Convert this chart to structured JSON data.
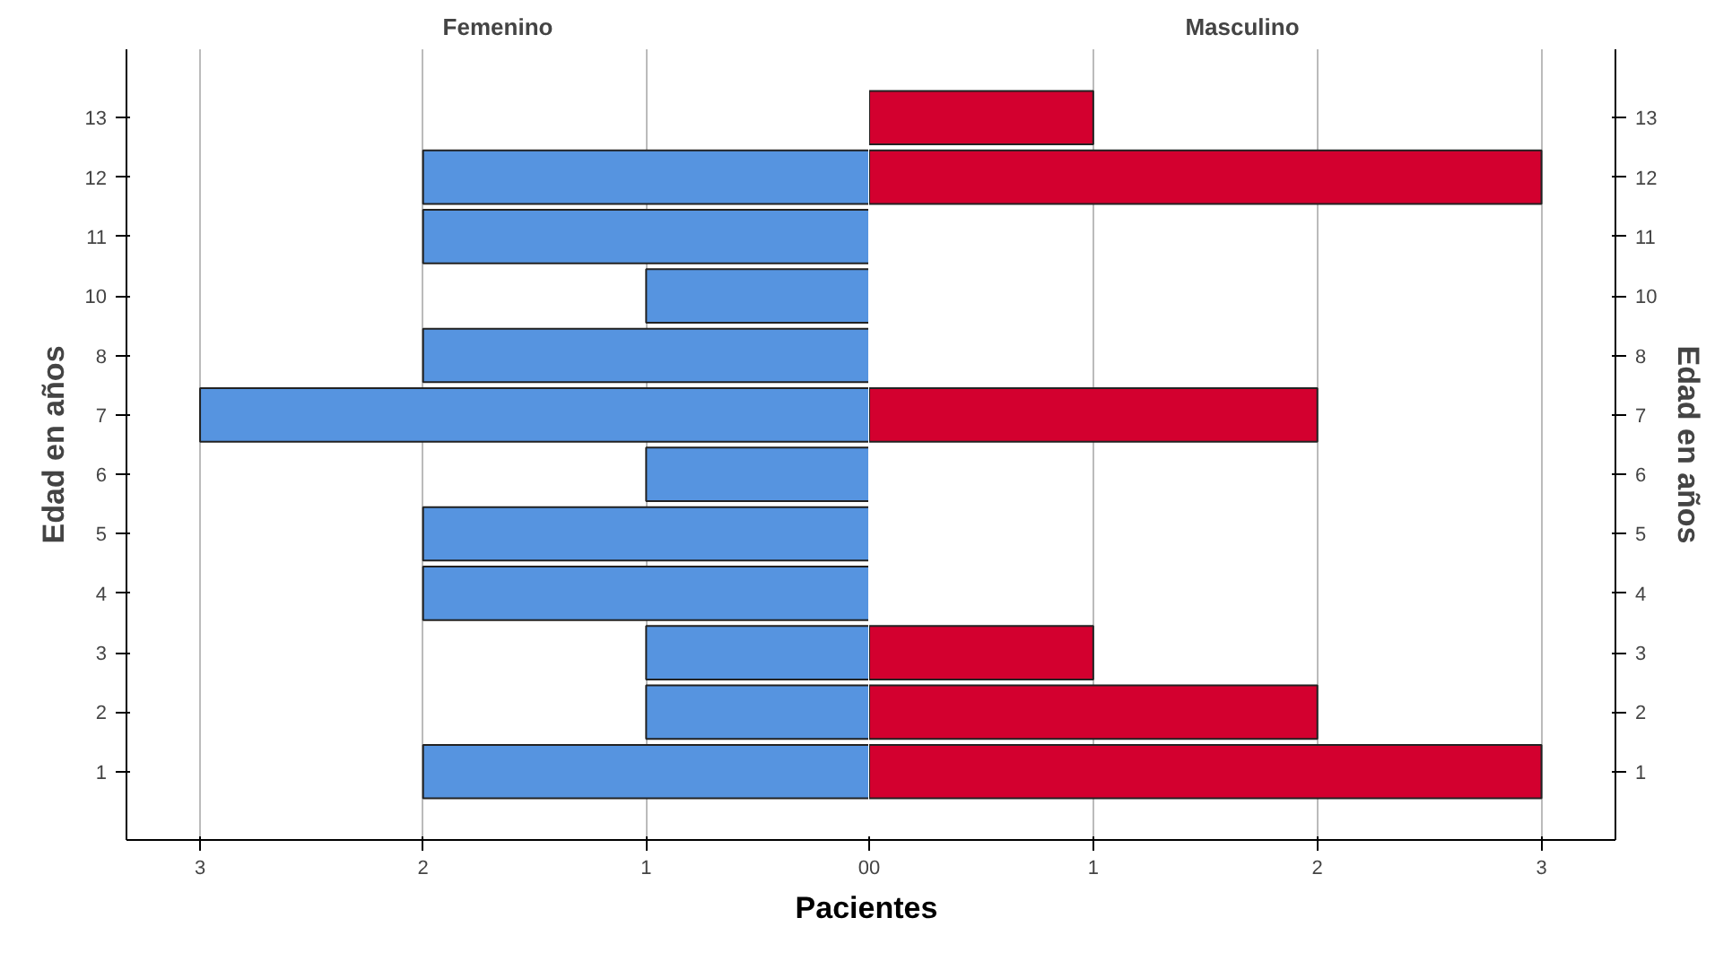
{
  "chart_data": [
    {
      "type": "bar",
      "orientation": "horizontal",
      "title": "Femenino",
      "ylabel": "Edad en años",
      "xlabel": "Pacientes",
      "categories": [
        "13",
        "12",
        "11",
        "10",
        "8",
        "7",
        "6",
        "5",
        "4",
        "3",
        "2",
        "1"
      ],
      "values": [
        null,
        2,
        2,
        1,
        2,
        3,
        1,
        2,
        2,
        1,
        1,
        2
      ],
      "color": "#5694e0",
      "xlim": [
        3.33,
        0
      ],
      "xticks": [
        3,
        2,
        1,
        0
      ],
      "grid": "x"
    },
    {
      "type": "bar",
      "orientation": "horizontal",
      "title": "Masculino",
      "ylabel": "Edad en años",
      "categories": [
        "13",
        "12",
        "11",
        "10",
        "8",
        "7",
        "6",
        "5",
        "4",
        "3",
        "2",
        "1"
      ],
      "values": [
        1,
        3,
        null,
        null,
        null,
        2,
        null,
        null,
        null,
        1,
        2,
        3
      ],
      "color": "#d3002f",
      "xlim": [
        0,
        3.33
      ],
      "xticks": [
        0,
        1,
        2,
        3
      ],
      "grid": "x"
    }
  ]
}
